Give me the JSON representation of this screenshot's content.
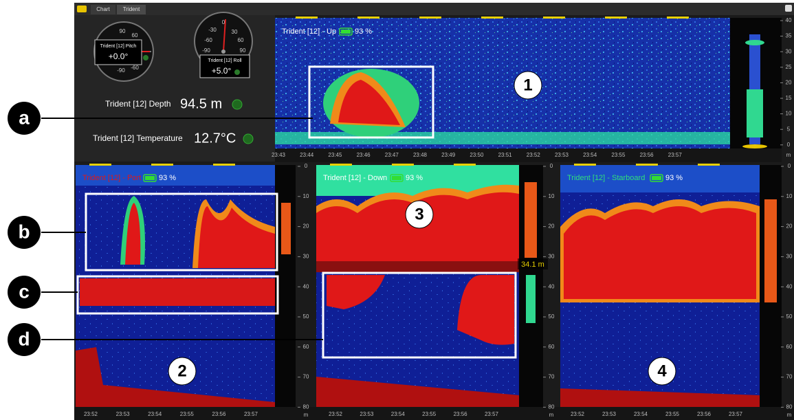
{
  "toolbar": {
    "tabs": [
      "Chart",
      "Trident"
    ]
  },
  "gauges": [
    {
      "label": "Trident [12] Pitch",
      "value": "+0.0°",
      "scale": [
        "90",
        "60",
        "-90",
        "-60"
      ]
    },
    {
      "label": "Trident [12] Roll",
      "value": "+5.0°",
      "scale": [
        "-30",
        "0",
        "30",
        "-60",
        "60",
        "-90",
        "90"
      ]
    }
  ],
  "readouts": [
    {
      "label": "Trident [12] Depth",
      "value": "94.5 m"
    },
    {
      "label": "Trident [12] Temperature",
      "value": "12.7°C"
    }
  ],
  "panels": [
    {
      "title": "Trident [12]  - Up",
      "battery": "93 %",
      "number": "1",
      "times": [
        "23:43",
        "23:44",
        "23:45",
        "23:46",
        "23:47",
        "23:48",
        "23:49",
        "23:50",
        "23:51",
        "23:52",
        "23:53",
        "23:54",
        "23:55",
        "23:56",
        "23:57"
      ],
      "depths": [
        "40",
        "35",
        "30",
        "25",
        "20",
        "15",
        "10",
        "5",
        "0"
      ],
      "unit": "m"
    },
    {
      "title": "Trident [12]  - Port",
      "battery": "93 %",
      "number": "2",
      "times": [
        "23:52",
        "23:53",
        "23:54",
        "23:55",
        "23:56",
        "23:57"
      ],
      "depths": [
        "0",
        "10",
        "20",
        "30",
        "40",
        "50",
        "60",
        "70",
        "80"
      ],
      "unit": "m"
    },
    {
      "title": "Trident [12]  - Down",
      "battery": "93 %",
      "number": "3",
      "times": [
        "23:52",
        "23:53",
        "23:54",
        "23:55",
        "23:56",
        "23:57"
      ],
      "depths": [
        "0",
        "10",
        "20",
        "30",
        "40",
        "50",
        "60",
        "70",
        "80"
      ],
      "unit": "m"
    },
    {
      "title": "Trident [12]  - Starboard",
      "battery": "93 %",
      "number": "4",
      "times": [
        "23:52",
        "23:53",
        "23:54",
        "23:55",
        "23:56",
        "23:57"
      ],
      "depths": [
        "0",
        "10",
        "20",
        "30",
        "40",
        "50",
        "60",
        "70",
        "80"
      ],
      "unit": "m"
    }
  ],
  "depth_marker": "34.1 m",
  "callouts": [
    "a",
    "b",
    "c",
    "d"
  ]
}
